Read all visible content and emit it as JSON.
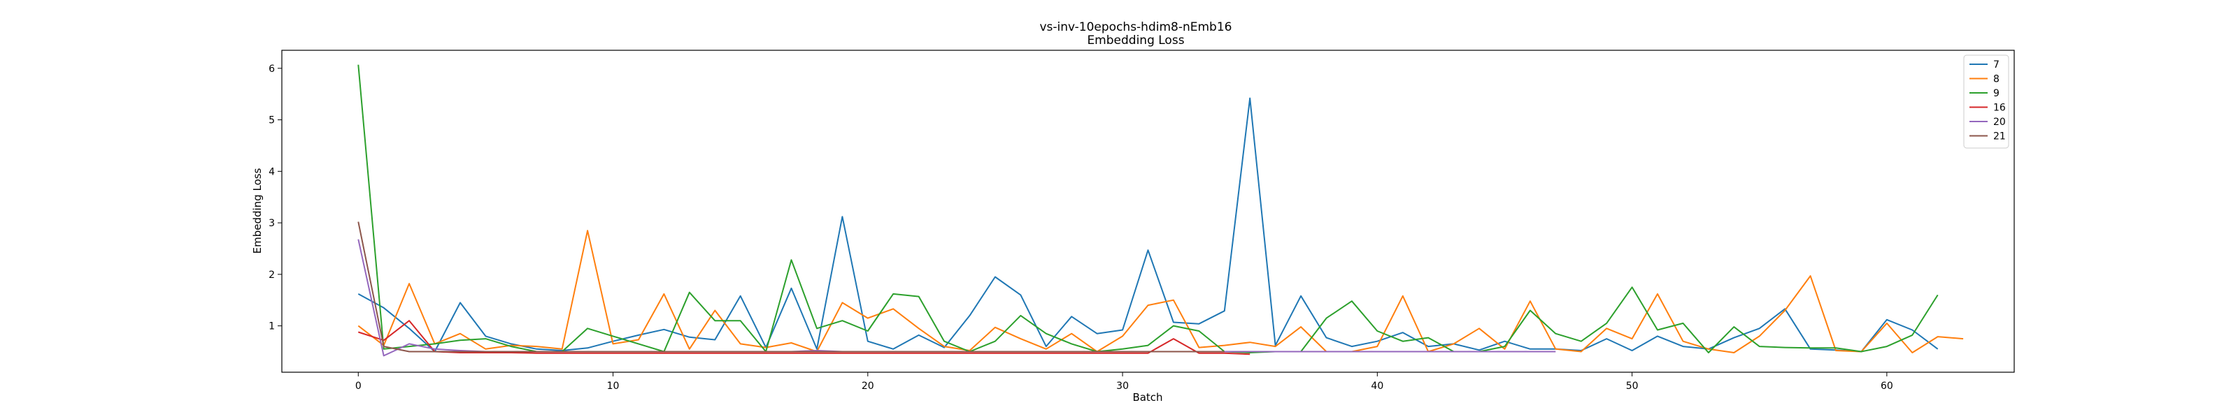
{
  "chart_data": {
    "type": "line",
    "title": "vs-inv-10epochs-hdim8-nEmb16",
    "subtitle": "Embedding Loss",
    "xlabel": "Batch",
    "ylabel": "Embedding Loss",
    "xlim": [
      -3,
      65
    ],
    "ylim": [
      0.1,
      6.35
    ],
    "xticks": [
      0,
      10,
      20,
      30,
      40,
      50,
      60
    ],
    "yticks": [
      1,
      2,
      3,
      4,
      5,
      6
    ],
    "grid": false,
    "legend_position": "top-right",
    "series": [
      {
        "name": "7",
        "color": "#1f77b4",
        "values": [
          1.62,
          1.35,
          0.95,
          0.5,
          1.45,
          0.8,
          0.65,
          0.55,
          0.52,
          0.57,
          0.7,
          0.82,
          0.93,
          0.78,
          0.73,
          1.58,
          0.58,
          1.73,
          0.55,
          3.12,
          0.7,
          0.55,
          0.82,
          0.58,
          1.2,
          1.95,
          1.6,
          0.6,
          1.18,
          0.85,
          0.92,
          2.47,
          1.07,
          1.04,
          1.29,
          5.42,
          0.62,
          1.58,
          0.77,
          0.6,
          0.7,
          0.87,
          0.6,
          0.65,
          0.53,
          0.7,
          0.55,
          0.55,
          0.52,
          0.75,
          0.52,
          0.8,
          0.6,
          0.55,
          0.77,
          0.95,
          1.33,
          0.55,
          0.53,
          0.5,
          1.12,
          0.92,
          0.55
        ]
      },
      {
        "name": "8",
        "color": "#ff7f0e",
        "values": [
          1.0,
          0.62,
          1.82,
          0.65,
          0.85,
          0.55,
          0.62,
          0.6,
          0.55,
          2.85,
          0.65,
          0.73,
          1.62,
          0.55,
          1.3,
          0.65,
          0.58,
          0.67,
          0.5,
          1.45,
          1.15,
          1.33,
          0.95,
          0.6,
          0.52,
          0.97,
          0.75,
          0.55,
          0.85,
          0.5,
          0.8,
          1.4,
          1.5,
          0.58,
          0.62,
          0.68,
          0.6,
          0.98,
          0.5,
          0.5,
          0.6,
          1.58,
          0.5,
          0.65,
          0.95,
          0.55,
          1.48,
          0.55,
          0.5,
          0.95,
          0.75,
          1.62,
          0.7,
          0.55,
          0.48,
          0.8,
          1.3,
          1.97,
          0.52,
          0.5,
          1.05,
          0.48,
          0.79,
          0.75
        ]
      },
      {
        "name": "9",
        "color": "#2ca02c",
        "values": [
          6.07,
          0.55,
          0.6,
          0.65,
          0.72,
          0.75,
          0.6,
          0.5,
          0.5,
          0.95,
          0.8,
          0.65,
          0.5,
          1.65,
          1.1,
          1.1,
          0.5,
          2.28,
          0.95,
          1.1,
          0.9,
          1.62,
          1.57,
          0.7,
          0.5,
          0.7,
          1.2,
          0.85,
          0.65,
          0.5,
          0.55,
          0.62,
          1.0,
          0.9,
          0.5,
          0.48,
          0.5,
          0.5,
          1.15,
          1.48,
          0.9,
          0.7,
          0.77,
          0.5,
          0.5,
          0.6,
          1.3,
          0.85,
          0.7,
          1.05,
          1.75,
          0.92,
          1.05,
          0.48,
          0.98,
          0.6,
          0.58,
          0.57,
          0.57,
          0.5,
          0.6,
          0.82,
          1.6
        ]
      },
      {
        "name": "16",
        "color": "#d62728",
        "values": [
          0.88,
          0.72,
          1.1,
          0.5,
          0.48,
          0.48,
          0.48,
          0.47,
          0.47,
          0.47,
          0.47,
          0.47,
          0.47,
          0.47,
          0.47,
          0.47,
          0.47,
          0.47,
          0.47,
          0.47,
          0.47,
          0.47,
          0.47,
          0.47,
          0.47,
          0.47,
          0.47,
          0.47,
          0.47,
          0.47,
          0.47,
          0.47,
          0.75,
          0.47,
          0.47,
          0.45
        ]
      },
      {
        "name": "20",
        "color": "#9467bd",
        "values": [
          2.68,
          0.42,
          0.65,
          0.55,
          0.52,
          0.5,
          0.5,
          0.5,
          0.5,
          0.5,
          0.5,
          0.5,
          0.5,
          0.5,
          0.5,
          0.5,
          0.5,
          0.5,
          0.52,
          0.5,
          0.5,
          0.5,
          0.5,
          0.5,
          0.5,
          0.5,
          0.5,
          0.5,
          0.5,
          0.5,
          0.5,
          0.5,
          0.5,
          0.5,
          0.5,
          0.5,
          0.5,
          0.5,
          0.5,
          0.5,
          0.5,
          0.5,
          0.5,
          0.5,
          0.5,
          0.5,
          0.5,
          0.5
        ]
      },
      {
        "name": "21",
        "color": "#8c564b",
        "values": [
          3.02,
          0.6,
          0.5,
          0.5,
          0.5,
          0.5,
          0.5,
          0.5,
          0.5,
          0.5,
          0.5,
          0.5,
          0.5,
          0.5,
          0.5,
          0.5,
          0.5,
          0.5,
          0.5,
          0.5,
          0.5,
          0.5,
          0.5,
          0.5,
          0.5,
          0.5,
          0.5,
          0.5,
          0.5,
          0.5,
          0.5,
          0.5,
          0.5,
          0.5,
          0.5
        ]
      }
    ]
  }
}
